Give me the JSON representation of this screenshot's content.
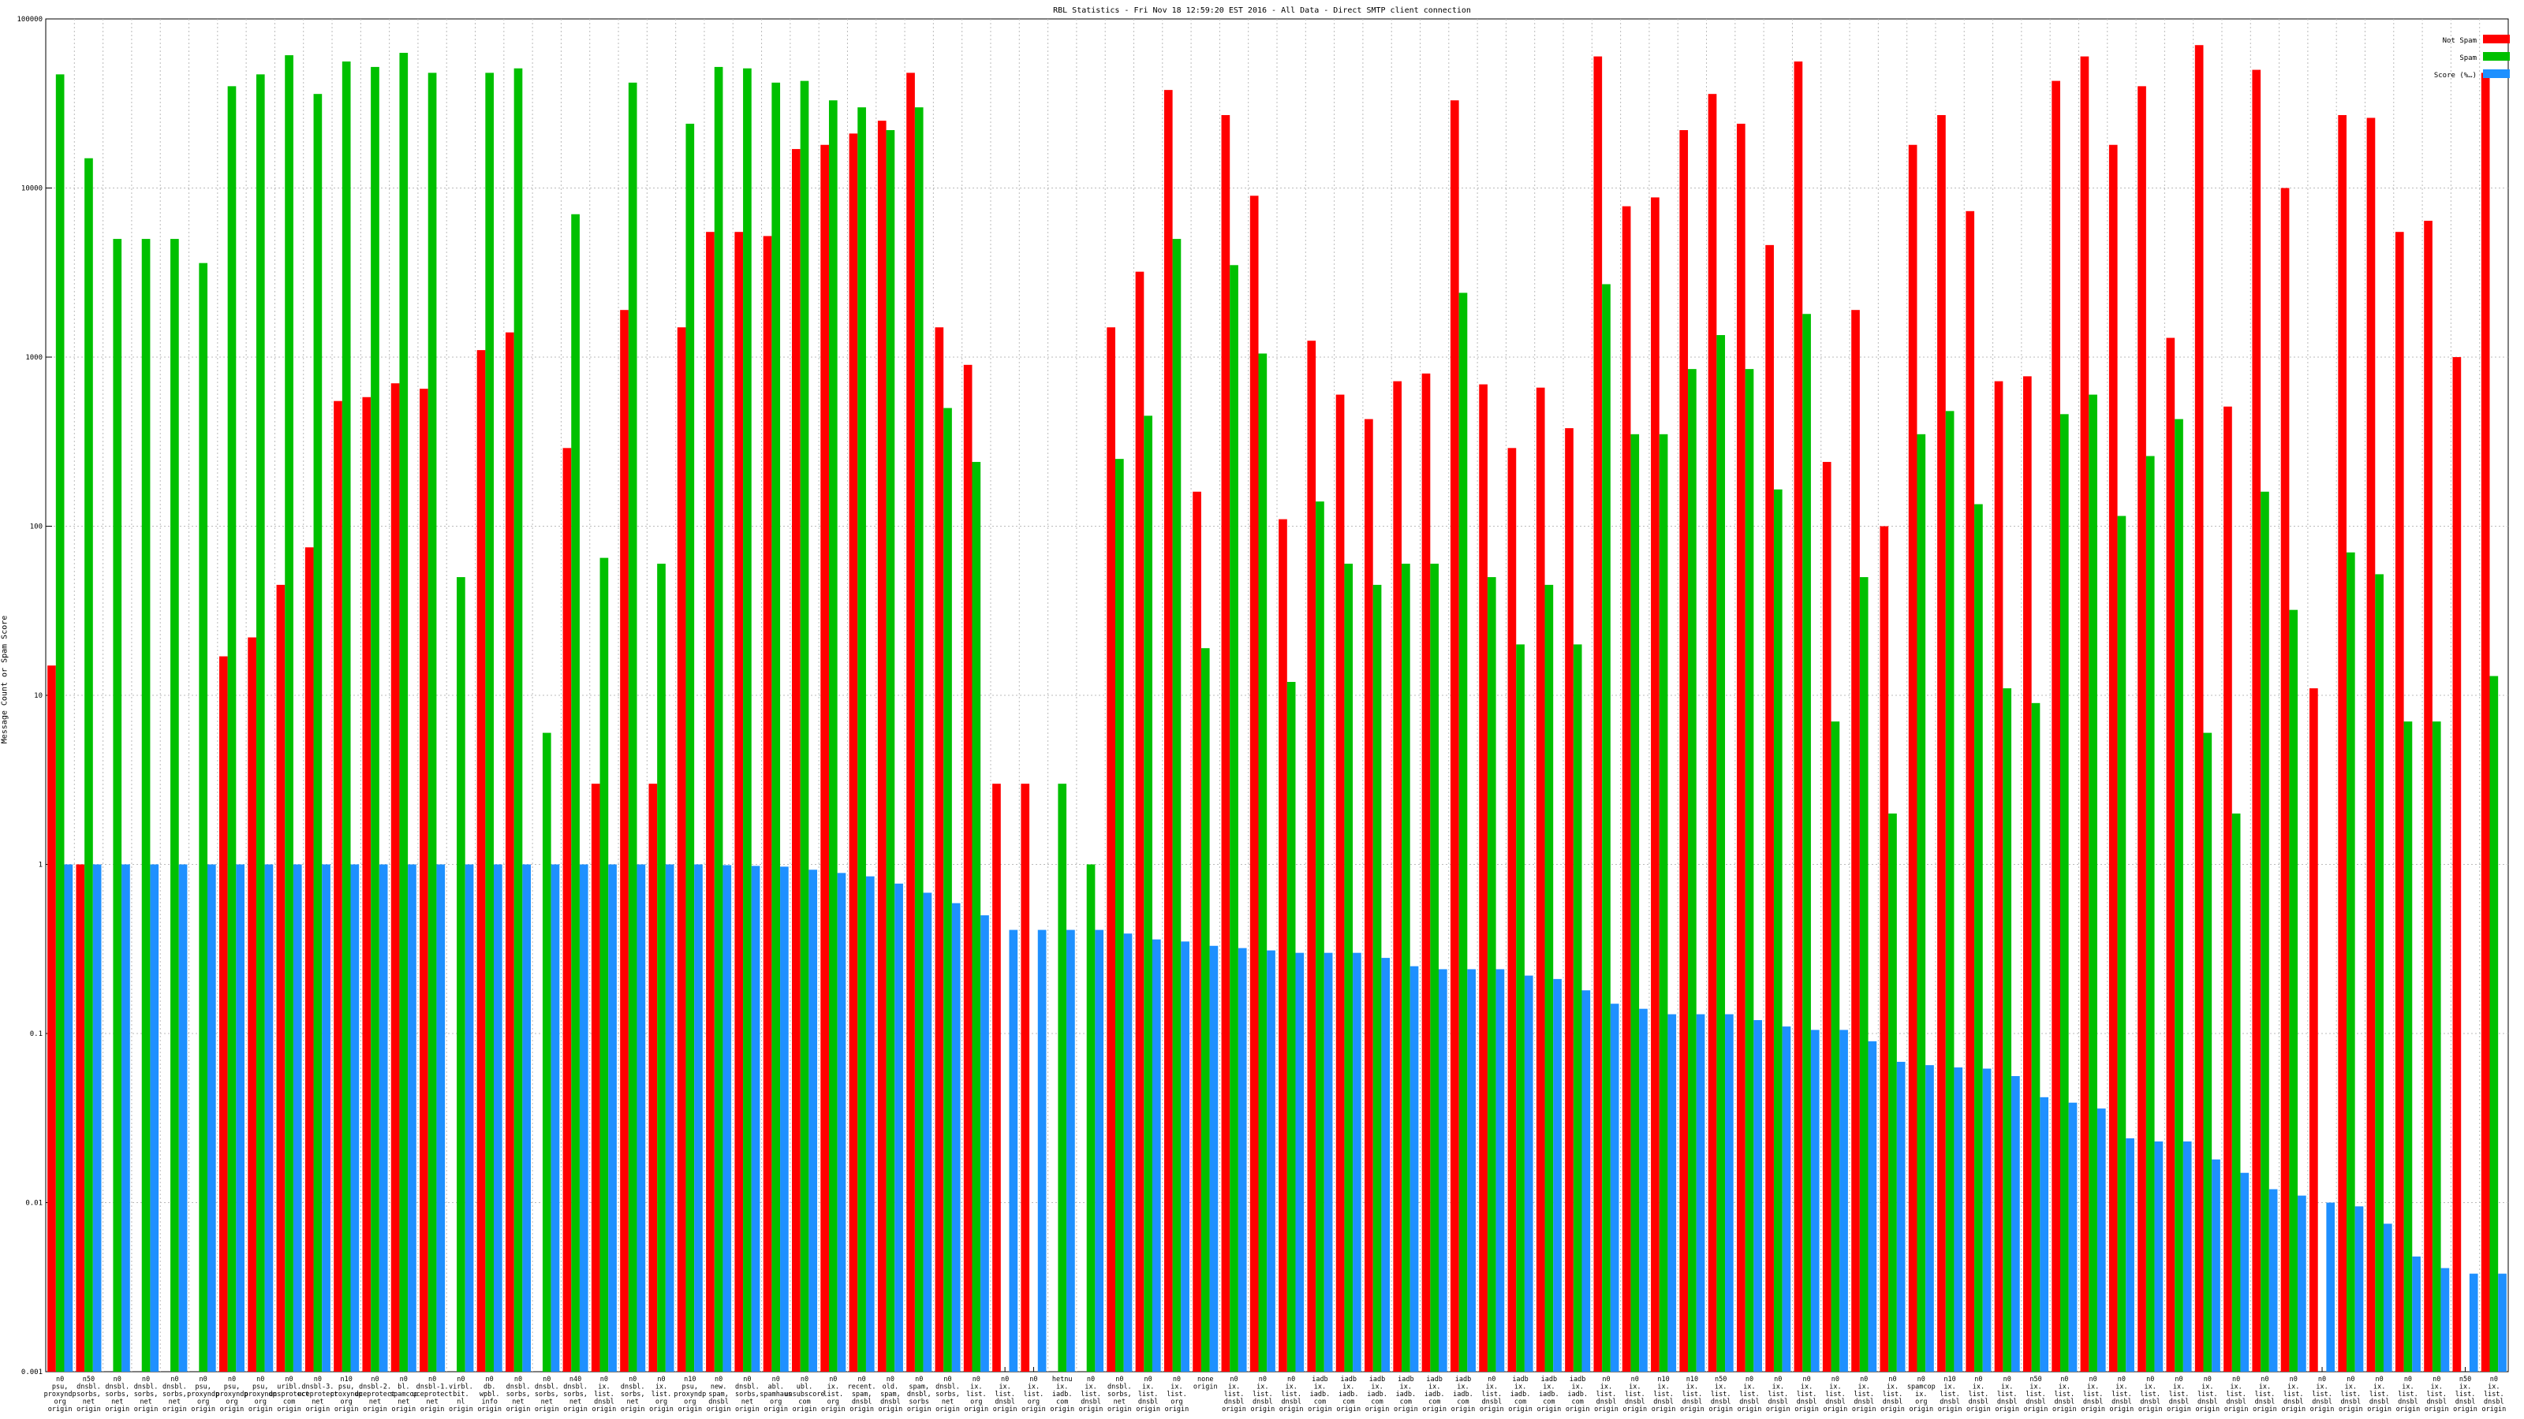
{
  "chart_data": {
    "type": "bar",
    "title": "RBL Statistics - Fri Nov 18 12:59:20 EST 2016 - All Data - Direct SMTP client connection",
    "xlabel": "",
    "ylabel": "Message Count or Spam Score",
    "yscale": "log",
    "ylim": [
      0.001,
      100000
    ],
    "yticks": [
      "0.001",
      "0.01",
      "0.1",
      "1",
      "10",
      "100",
      "1000",
      "10000",
      "100000"
    ],
    "grid": true,
    "legend_position": "top-right",
    "colors": {
      "not_spam": "#ff0000",
      "spam": "#00c000",
      "score": "#1e90ff",
      "grid": "#bbbbbb"
    },
    "categories": [
      [
        "n0",
        "psu,",
        "proxyndp",
        "org",
        "origin"
      ],
      [
        "n50",
        "dnsbl.",
        "sorbs,",
        "net",
        "origin"
      ],
      [
        "n0",
        "dnsbl.",
        "sorbs,",
        "net",
        "origin"
      ],
      [
        "n0",
        "dnsbl.",
        "sorbs,",
        "net",
        "origin"
      ],
      [
        "n0",
        "dnsbl.",
        "sorbs,",
        "net",
        "origin"
      ],
      [
        "n0",
        "psu,",
        "proxyndp",
        "org",
        "origin"
      ],
      [
        "n0",
        "psu,",
        "proxyndp",
        "org",
        "origin"
      ],
      [
        "n0",
        "psu,",
        "proxyndp",
        "org",
        "origin"
      ],
      [
        "n0",
        "uribl.",
        "unsprotect",
        "com",
        "origin"
      ],
      [
        "n0",
        "dnsbl-3.",
        "uceprotect",
        "net",
        "origin"
      ],
      [
        "n10",
        "psu,",
        "proxyndp",
        "org",
        "origin"
      ],
      [
        "n0",
        "dnsbl-2.",
        "uceprotect",
        "net",
        "origin"
      ],
      [
        "n0",
        "bl.",
        "spamcop",
        "net",
        "origin"
      ],
      [
        "n0",
        "dnsbl-1.",
        "uceprotect",
        "net",
        "origin"
      ],
      [
        "n0",
        "virbl.",
        "bit.",
        "nl",
        "origin"
      ],
      [
        "n0",
        "db.",
        "wpbl.",
        "info",
        "origin"
      ],
      [
        "n0",
        "dnsbl.",
        "sorbs,",
        "net",
        "origin"
      ],
      [
        "n0",
        "dnsbl.",
        "sorbs,",
        "net",
        "origin"
      ],
      [
        "n40",
        "dnsbl.",
        "sorbs,",
        "net",
        "origin"
      ],
      [
        "n0",
        "ix.",
        "list.",
        "dnsbl",
        "origin"
      ],
      [
        "n0",
        "dnsbl.",
        "sorbs,",
        "net",
        "origin"
      ],
      [
        "n0",
        "ix.",
        "list.",
        "org",
        "origin"
      ],
      [
        "n10",
        "psu,",
        "proxyndp",
        "org",
        "origin"
      ],
      [
        "n0",
        "new.",
        "spam,",
        "dnsbl",
        "origin"
      ],
      [
        "n0",
        "dnsbl.",
        "sorbs,",
        "net",
        "origin"
      ],
      [
        "n0",
        "abl.",
        "spamhaus",
        "org",
        "origin"
      ],
      [
        "n0",
        "ubl.",
        "unsubscore",
        "com",
        "origin"
      ],
      [
        "n0",
        "ix.",
        "list.",
        "org",
        "origin"
      ],
      [
        "n0",
        "recent.",
        "spam,",
        "dnsbl",
        "origin"
      ],
      [
        "n0",
        "old.",
        "spam,",
        "dnsbl",
        "origin"
      ],
      [
        "n0",
        "spam,",
        "dnsbl,",
        "sorbs",
        "origin"
      ],
      [
        "n0",
        "dnsbl.",
        "sorbs,",
        "net",
        "origin"
      ],
      [
        "n0",
        "ix.",
        "list.",
        "org",
        "origin"
      ],
      [
        "n0",
        "ix.",
        "list.",
        "dnsbl",
        "origin"
      ],
      [
        "n0",
        "ix.",
        "list.",
        "org",
        "origin"
      ],
      [
        "hetnu",
        "ix.",
        "iadb.",
        "com",
        "origin"
      ],
      [
        "n0",
        "ix.",
        "list.",
        "dnsbl",
        "origin"
      ],
      [
        "n0",
        "dnsbl.",
        "sorbs,",
        "net",
        "origin"
      ],
      [
        "n0",
        "ix.",
        "list.",
        "dnsbl",
        "origin"
      ],
      [
        "n0",
        "ix.",
        "list.",
        "org",
        "origin"
      ],
      [
        "none",
        "origin"
      ],
      [
        "n0",
        "ix.",
        "list.",
        "dnsbl",
        "origin"
      ],
      [
        "n0",
        "ix.",
        "list.",
        "dnsbl",
        "origin"
      ],
      [
        "n0",
        "ix.",
        "list.",
        "dnsbl",
        "origin"
      ],
      [
        "iadb",
        "ix.",
        "iadb.",
        "com",
        "origin"
      ],
      [
        "iadb",
        "ix.",
        "iadb.",
        "com",
        "origin"
      ],
      [
        "iadb",
        "ix.",
        "iadb.",
        "com",
        "origin"
      ],
      [
        "iadb",
        "ix.",
        "iadb.",
        "com",
        "origin"
      ],
      [
        "iadb",
        "ix.",
        "iadb.",
        "com",
        "origin"
      ],
      [
        "iadb",
        "ix.",
        "iadb.",
        "com",
        "origin"
      ],
      [
        "n0",
        "ix.",
        "list.",
        "dnsbl",
        "origin"
      ],
      [
        "iadb",
        "ix.",
        "iadb.",
        "com",
        "origin"
      ],
      [
        "iadb",
        "ix.",
        "iadb.",
        "com",
        "origin"
      ],
      [
        "iadb",
        "ix.",
        "iadb.",
        "com",
        "origin"
      ],
      [
        "n0",
        "ix.",
        "list.",
        "dnsbl",
        "origin"
      ],
      [
        "n0",
        "ix.",
        "list.",
        "dnsbl",
        "origin"
      ],
      [
        "n10",
        "ix.",
        "list.",
        "dnsbl",
        "origin"
      ],
      [
        "n10",
        "ix.",
        "list.",
        "dnsbl",
        "origin"
      ],
      [
        "n50",
        "ix.",
        "list.",
        "dnsbl",
        "origin"
      ],
      [
        "n0",
        "ix.",
        "list.",
        "dnsbl",
        "origin"
      ],
      [
        "n0",
        "ix.",
        "list.",
        "dnsbl",
        "origin"
      ],
      [
        "n0",
        "ix.",
        "list.",
        "dnsbl",
        "origin"
      ],
      [
        "n0",
        "ix.",
        "list.",
        "dnsbl",
        "origin"
      ],
      [
        "n0",
        "ix.",
        "list.",
        "dnsbl",
        "origin"
      ],
      [
        "n0",
        "ix.",
        "list.",
        "dnsbl",
        "origin"
      ],
      [
        "n0",
        "spamcop",
        "ix.",
        "org",
        "origin"
      ],
      [
        "n10",
        "ix.",
        "list.",
        "dnsbl",
        "origin"
      ],
      [
        "n0",
        "ix.",
        "list.",
        "dnsbl",
        "origin"
      ],
      [
        "n0",
        "ix.",
        "list.",
        "dnsbl",
        "origin"
      ],
      [
        "n50",
        "ix.",
        "list.",
        "dnsbl",
        "origin"
      ],
      [
        "n0",
        "ix.",
        "list.",
        "dnsbl",
        "origin"
      ],
      [
        "n0",
        "ix.",
        "list.",
        "dnsbl",
        "origin"
      ],
      [
        "n0",
        "ix.",
        "list.",
        "dnsbl",
        "origin"
      ],
      [
        "n0",
        "ix.",
        "list.",
        "dnsbl",
        "origin"
      ],
      [
        "n0",
        "ix.",
        "list.",
        "dnsbl",
        "origin"
      ],
      [
        "n0",
        "ix.",
        "list.",
        "dnsbl",
        "origin"
      ],
      [
        "n0",
        "ix.",
        "list.",
        "dnsbl",
        "origin"
      ],
      [
        "n0",
        "ix.",
        "list.",
        "dnsbl",
        "origin"
      ],
      [
        "n0",
        "ix.",
        "list.",
        "dnsbl",
        "origin"
      ],
      [
        "n0",
        "ix.",
        "list.",
        "dnsbl",
        "origin"
      ],
      [
        "n0",
        "ix.",
        "list.",
        "dnsbl",
        "origin"
      ],
      [
        "n0",
        "ix.",
        "list.",
        "dnsbl",
        "origin"
      ],
      [
        "n0",
        "ix.",
        "list.",
        "dnsbl",
        "origin"
      ],
      [
        "n0",
        "ix.",
        "list.",
        "dnsbl",
        "origin"
      ],
      [
        "n50",
        "ix.",
        "list.",
        "dnsbl",
        "origin"
      ],
      [
        "n0",
        "ix.",
        "list.",
        "dnsbl",
        "origin"
      ]
    ],
    "series": [
      {
        "name": "Not Spam",
        "values": [
          15,
          1,
          null,
          null,
          null,
          null,
          17,
          22,
          45,
          75,
          550,
          580,
          700,
          650,
          null,
          1100,
          1400,
          null,
          290,
          3,
          1900,
          3,
          1500,
          5500,
          5500,
          5200,
          17000,
          18000,
          21000,
          25000,
          48000,
          1500,
          900,
          3,
          3,
          null,
          null,
          1500,
          3200,
          38000,
          160,
          27000,
          9000,
          110,
          1250,
          600,
          430,
          720,
          800,
          33000,
          690,
          290,
          660,
          380,
          60000,
          7800,
          8800,
          22000,
          36000,
          24000,
          4600,
          56000,
          240,
          1900,
          100,
          18000,
          27000,
          7300,
          720,
          770,
          43000,
          60000,
          18000,
          40000,
          1300,
          70000,
          510,
          50000,
          10000,
          11,
          27000,
          26000,
          5500,
          6400,
          1000,
          48000
        ]
      },
      {
        "name": "Spam",
        "values": [
          47000,
          15000,
          5000,
          5000,
          5000,
          3600,
          40000,
          47000,
          61000,
          36000,
          56000,
          52000,
          63000,
          48000,
          50,
          48000,
          51000,
          6,
          7000,
          65,
          42000,
          60,
          24000,
          52000,
          51000,
          42000,
          43000,
          33000,
          30000,
          22000,
          30000,
          500,
          240,
          null,
          null,
          3,
          1,
          250,
          450,
          5000,
          19,
          3500,
          1050,
          12,
          140,
          60,
          45,
          60,
          60,
          2400,
          50,
          20,
          45,
          20,
          2700,
          350,
          350,
          850,
          1350,
          850,
          165,
          1800,
          7,
          50,
          2,
          350,
          480,
          135,
          11,
          9,
          460,
          600,
          115,
          260,
          430,
          6,
          2,
          160,
          32,
          null,
          70,
          52,
          7,
          7,
          null,
          13
        ]
      },
      {
        "name": "Score (%…)",
        "values": [
          1,
          1,
          1,
          1,
          1,
          1,
          1,
          1,
          1,
          1,
          1,
          1,
          1,
          1,
          1,
          1,
          1,
          1,
          1,
          1,
          1,
          1,
          1,
          0.99,
          0.98,
          0.97,
          0.93,
          0.89,
          0.85,
          0.77,
          0.68,
          0.59,
          0.5,
          0.41,
          0.41,
          0.41,
          0.41,
          0.39,
          0.36,
          0.35,
          0.33,
          0.32,
          0.31,
          0.3,
          0.3,
          0.3,
          0.28,
          0.25,
          0.24,
          0.24,
          0.24,
          0.22,
          0.21,
          0.18,
          0.15,
          0.14,
          0.13,
          0.13,
          0.13,
          0.12,
          0.11,
          0.105,
          0.105,
          0.09,
          0.068,
          0.065,
          0.063,
          0.062,
          0.056,
          0.042,
          0.039,
          0.036,
          0.024,
          0.023,
          0.023,
          0.018,
          0.015,
          0.012,
          0.011,
          0.01,
          0.0095,
          0.0075,
          0.0048,
          0.0041,
          0.0038,
          0.0038
        ]
      }
    ]
  }
}
